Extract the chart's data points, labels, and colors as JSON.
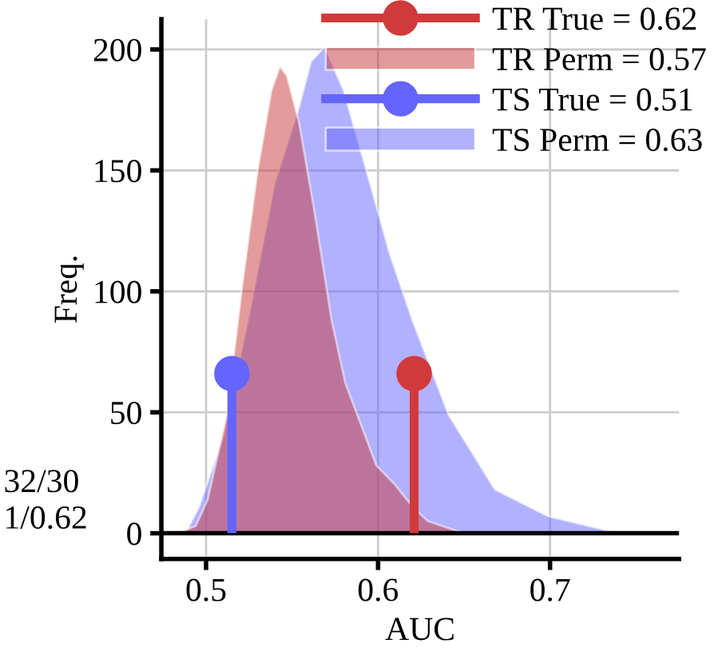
{
  "chart_data": {
    "type": "area",
    "xlabel": "AUC",
    "ylabel": "Freq.",
    "series": [
      {
        "name": "TR True = 0.62",
        "type": "lollipop",
        "marker": "circle",
        "color": "#d13a3a",
        "x": [
          0.621
        ],
        "values": [
          66
        ]
      },
      {
        "name": "TR Perm = 0.57",
        "color": "#c83737",
        "x": [
          0.483,
          0.494,
          0.501,
          0.512,
          0.521,
          0.53,
          0.538,
          0.543,
          0.547,
          0.554,
          0.563,
          0.573,
          0.581,
          0.599,
          0.61,
          0.62,
          0.629,
          0.65
        ],
        "values": [
          0,
          3,
          14,
          49,
          102,
          150,
          183,
          193,
          189,
          170,
          133,
          88,
          62,
          28,
          20,
          11,
          5,
          0
        ]
      },
      {
        "name": "TS True = 0.51",
        "type": "lollipop",
        "marker": "circle",
        "color": "#6464ff",
        "x": [
          0.515
        ],
        "values": [
          66
        ]
      },
      {
        "name": "TS Perm = 0.63",
        "color": "#6464ff",
        "x": [
          0.488,
          0.496,
          0.51,
          0.525,
          0.54,
          0.554,
          0.561,
          0.569,
          0.58,
          0.594,
          0.607,
          0.62,
          0.641,
          0.668,
          0.699,
          0.734,
          0.762
        ],
        "values": [
          0,
          11,
          40,
          90,
          145,
          176,
          195,
          201,
          183,
          148,
          115,
          88,
          49,
          18,
          7,
          1,
          0
        ]
      }
    ],
    "xlim": [
      0.474,
      0.775
    ],
    "ylim": [
      -10.6,
      212.5
    ],
    "xticks": [
      0.5,
      0.6,
      0.7
    ],
    "yticks": [
      0,
      50,
      100,
      150,
      200
    ],
    "ref_lines": [
      {
        "axis": "y",
        "value": 0,
        "color": "#000000"
      }
    ],
    "grid": true,
    "legend": "top right",
    "annotations": [
      "32/30",
      "1/0.62"
    ]
  }
}
